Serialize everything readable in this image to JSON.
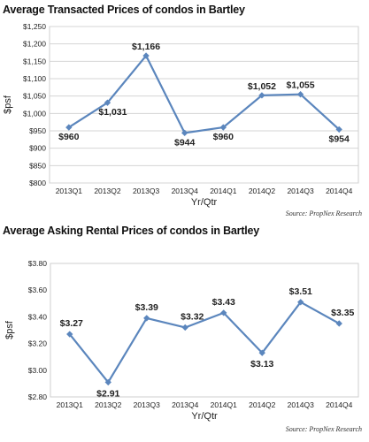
{
  "chart_data": [
    {
      "type": "line",
      "title": "Average Transacted Prices of condos in Bartley",
      "xlabel": "Yr/Qtr",
      "ylabel": "$psf",
      "categories": [
        "2013Q1",
        "2013Q2",
        "2013Q3",
        "2013Q4",
        "2014Q1",
        "2014Q2",
        "2014Q3",
        "2014Q4"
      ],
      "series": [
        {
          "values": [
            960,
            1031,
            1166,
            944,
            960,
            1052,
            1055,
            954
          ]
        }
      ],
      "data_labels": [
        "$960",
        "$1,031",
        "$1,166",
        "$944",
        "$960",
        "$1,052",
        "$1,055",
        "$954"
      ],
      "ylim": [
        800,
        1250
      ],
      "yticks": [
        800,
        850,
        900,
        950,
        1000,
        1050,
        1100,
        1150,
        1200,
        1250
      ],
      "ytick_labels": [
        "$800",
        "$850",
        "$900",
        "$950",
        "$1,000",
        "$1,050",
        "$1,100",
        "$1,150",
        "$1,200",
        "$1,250"
      ],
      "grid": true,
      "legend": "none",
      "source": "Source: PropNex Research",
      "line_color": "#5b86bd"
    },
    {
      "type": "line",
      "title": "Average Asking Rental Prices of condos in Bartley",
      "xlabel": "Yr/Qtr",
      "ylabel": "$psf",
      "categories": [
        "2013Q1",
        "2013Q2",
        "2013Q3",
        "2013Q4",
        "2014Q1",
        "2014Q2",
        "2014Q3",
        "2014Q4"
      ],
      "series": [
        {
          "values": [
            3.27,
            2.91,
            3.39,
            3.32,
            3.43,
            3.13,
            3.51,
            3.35
          ]
        }
      ],
      "data_labels": [
        "$3.27",
        "$2.91",
        "$3.39",
        "$3.32",
        "$3.43",
        "$3.13",
        "$3.51",
        "$3.35"
      ],
      "ylim": [
        2.8,
        3.8
      ],
      "yticks": [
        2.8,
        3.0,
        3.2,
        3.4,
        3.6,
        3.8
      ],
      "ytick_labels": [
        "$2.80",
        "$3.00",
        "$3.20",
        "$3.40",
        "$3.60",
        "$3.80"
      ],
      "grid": false,
      "legend": "none",
      "source": "Source: PropNex Research",
      "line_color": "#5b86bd"
    }
  ]
}
